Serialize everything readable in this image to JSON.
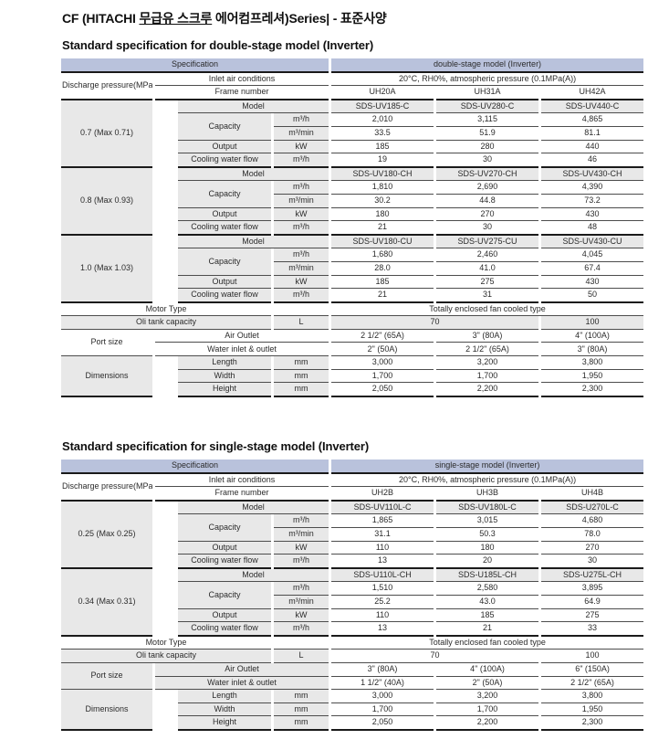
{
  "page": {
    "title_prefix": "CF (HITACHI ",
    "title_underlined": "무급유 스크루",
    "title_suffix": " 에어컴프레셔)Series| - 표준사양"
  },
  "colors": {
    "header_bg": "#b9c2dc",
    "header_text": "#0f1038",
    "label_cell_bg": "#e8e8e8",
    "thin_line": "#4d4d4d",
    "thick_line": "#1a1a1a"
  },
  "labels": {
    "spec_header": "Specification",
    "discharge": "Discharge pressure(MPaG)",
    "inlet": "Inlet air conditions",
    "frame": "Frame number",
    "model": "Model",
    "capacity": "Capacity",
    "output": "Output",
    "cooling": "Cooling water flow",
    "motor": "Motor Type",
    "oil_tank": "Oli tank capacity",
    "port_size": "Port size",
    "air_outlet": "Air Outlet",
    "water": "Water inlet & outlet",
    "dimensions": "Dimensions",
    "length": "Length",
    "width": "Width",
    "height": "Height",
    "unit_m3h": "m³/h",
    "unit_m3min": "m³/min",
    "unit_kw": "kW",
    "unit_l": "L",
    "unit_mm": "mm"
  },
  "tables": [
    {
      "section_title": "Standard specification for double-stage model (Inverter)",
      "model_header": "double-stage model (Inverter)",
      "inlet_value": "20°C, RH0%, atmospheric pressure (0.1MPa(A))",
      "frames": [
        "UH20A",
        "UH31A",
        "UH42A"
      ],
      "groups": [
        {
          "pressure": "0.7 (Max 0.71)",
          "models": [
            "SDS-UV185-C",
            "SDS-UV280-C",
            "SDS-UV440-C"
          ],
          "m3h": [
            "2,010",
            "3,115",
            "4,865"
          ],
          "m3min": [
            "33.5",
            "51.9",
            "81.1"
          ],
          "output": [
            "185",
            "280",
            "440"
          ],
          "cooling": [
            "19",
            "30",
            "46"
          ]
        },
        {
          "pressure": "0.8 (Max 0.93)",
          "models": [
            "SDS-UV180-CH",
            "SDS-UV270-CH",
            "SDS-UV430-CH"
          ],
          "m3h": [
            "1,810",
            "2,690",
            "4,390"
          ],
          "m3min": [
            "30.2",
            "44.8",
            "73.2"
          ],
          "output": [
            "180",
            "270",
            "430"
          ],
          "cooling": [
            "21",
            "30",
            "48"
          ]
        },
        {
          "pressure": "1.0 (Max 1.03)",
          "models": [
            "SDS-UV180-CU",
            "SDS-UV275-CU",
            "SDS-UV430-CU"
          ],
          "m3h": [
            "1,680",
            "2,460",
            "4,045"
          ],
          "m3min": [
            "28.0",
            "41.0",
            "67.4"
          ],
          "output": [
            "185",
            "275",
            "430"
          ],
          "cooling": [
            "21",
            "31",
            "50"
          ]
        }
      ],
      "motor_value": "Totally enclosed fan cooled type",
      "oil_values": [
        "70",
        "100"
      ],
      "air_outlet_values": [
        "2 1/2\" (65A)",
        "3\" (80A)",
        "4\" (100A)"
      ],
      "water_values": [
        "2\" (50A)",
        "2 1/2\" (65A)",
        "3\" (80A)"
      ],
      "dims": {
        "length": [
          "3,000",
          "3,200",
          "3,800"
        ],
        "width": [
          "1,700",
          "1,700",
          "1,950"
        ],
        "height": [
          "2,050",
          "2,200",
          "2,300"
        ]
      }
    },
    {
      "section_title": "Standard specification for single-stage model (Inverter)",
      "model_header": "single-stage model (Inverter)",
      "inlet_value": "20°C, RH0%, atmospheric pressure (0.1MPa(A))",
      "frames": [
        "UH2B",
        "UH3B",
        "UH4B"
      ],
      "groups": [
        {
          "pressure": "0.25 (Max 0.25)",
          "models": [
            "SDS-UV110L-C",
            "SDS-UV180L-C",
            "SDS-U270L-C"
          ],
          "m3h": [
            "1,865",
            "3,015",
            "4,680"
          ],
          "m3min": [
            "31.1",
            "50.3",
            "78.0"
          ],
          "output": [
            "110",
            "180",
            "270"
          ],
          "cooling": [
            "13",
            "20",
            "30"
          ]
        },
        {
          "pressure": "0.34 (Max 0.31)",
          "models": [
            "SDS-U110L-CH",
            "SDS-U185L-CH",
            "SDS-U275L-CH"
          ],
          "m3h": [
            "1,510",
            "2,580",
            "3,895"
          ],
          "m3min": [
            "25.2",
            "43.0",
            "64.9"
          ],
          "output": [
            "110",
            "185",
            "275"
          ],
          "cooling": [
            "13",
            "21",
            "33"
          ]
        }
      ],
      "motor_value": "Totally enclosed fan cooled type",
      "oil_values": [
        "70",
        "100"
      ],
      "air_outlet_values": [
        "3\" (80A)",
        "4\" (100A)",
        "6\" (150A)"
      ],
      "water_values": [
        "1 1/2\" (40A)",
        "2\" (50A)",
        "2 1/2\" (65A)"
      ],
      "dims": {
        "length": [
          "3,000",
          "3,200",
          "3,800"
        ],
        "width": [
          "1,700",
          "1,700",
          "1,950"
        ],
        "height": [
          "2,050",
          "2,200",
          "2,300"
        ]
      }
    }
  ]
}
